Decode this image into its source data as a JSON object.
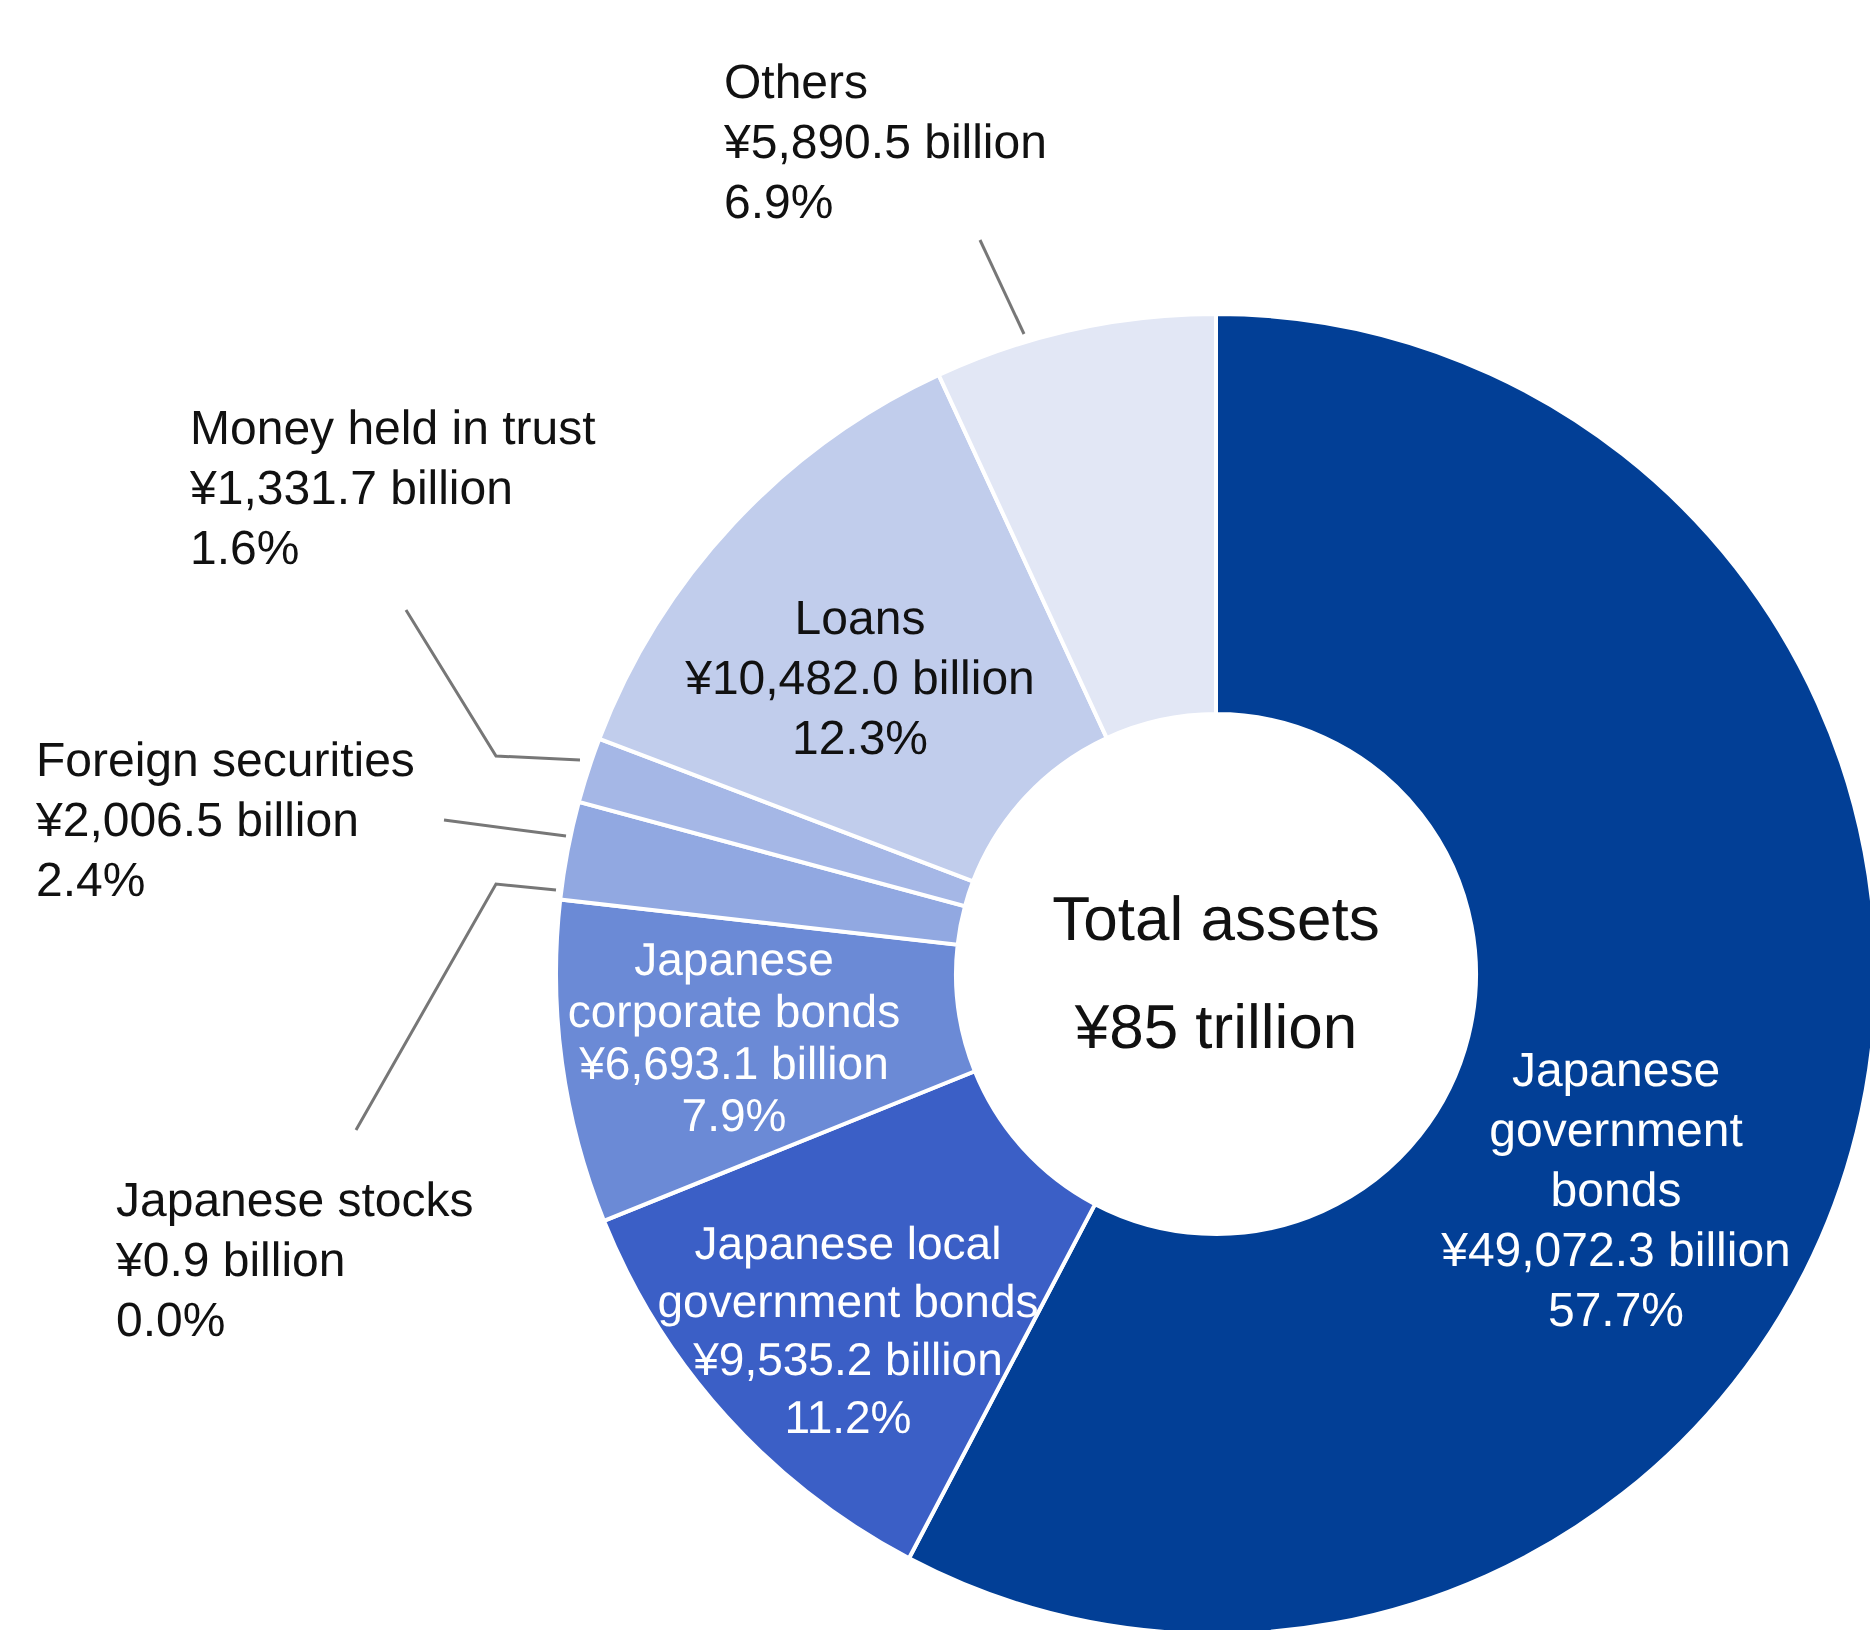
{
  "chart_data": {
    "type": "donut",
    "categories": [
      "Japanese government bonds",
      "Japanese local government bonds",
      "Japanese corporate bonds",
      "Japanese stocks",
      "Foreign securities",
      "Money held in trust",
      "Loans",
      "Others"
    ],
    "values": [
      57.7,
      11.2,
      7.9,
      0.0,
      2.4,
      1.6,
      12.3,
      6.9
    ],
    "colors": [
      "#023f96",
      "#3b5fc6",
      "#6b8ad6",
      "#7f98dc",
      "#91a8e1",
      "#a5b7e6",
      "#c1cdec",
      "#e2e7f5"
    ],
    "value_labels": [
      "¥49,072.3 billion\n57.7%",
      "¥9,535.2 billion\n11.2%",
      "¥6,693.1 billion\n7.9%",
      "¥0.9 billion\n0.0%",
      "¥2,006.5 billion\n2.4%",
      "¥1,331.7 billion\n1.6%",
      "¥10,482.0 billion\n12.3%",
      "¥5,890.5 billion\n6.9%"
    ],
    "annotations": [
      "Total assets",
      "¥85 trillion"
    ],
    "legend": false
  }
}
